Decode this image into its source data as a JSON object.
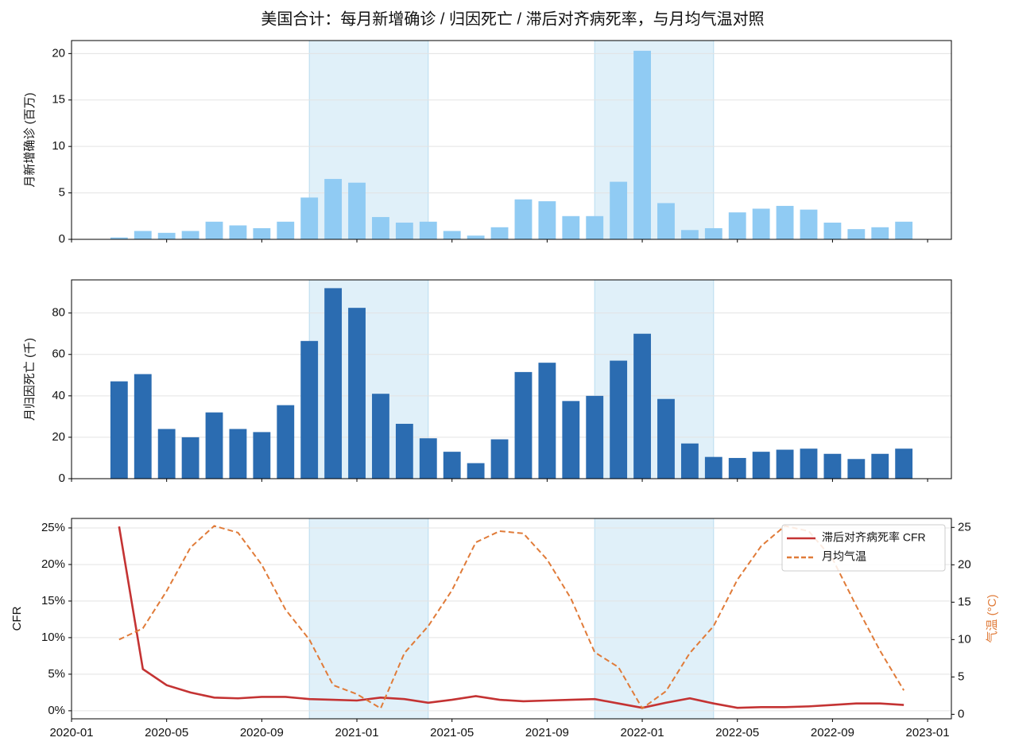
{
  "title": "美国合计：每月新增确诊 / 归因死亡 / 滞后对齐病死率，与月均气温对照",
  "shaded_spans": [
    [
      "2020-11",
      "2021-04"
    ],
    [
      "2021-11",
      "2022-04"
    ]
  ],
  "chart_data": [
    {
      "type": "bar",
      "ylabel": "月新增确诊 (百万)",
      "color": "#90cbf3",
      "x": [
        "2020-03",
        "2020-04",
        "2020-05",
        "2020-06",
        "2020-07",
        "2020-08",
        "2020-09",
        "2020-10",
        "2020-11",
        "2020-12",
        "2021-01",
        "2021-02",
        "2021-03",
        "2021-04",
        "2021-05",
        "2021-06",
        "2021-07",
        "2021-08",
        "2021-09",
        "2021-10",
        "2021-11",
        "2021-12",
        "2022-01",
        "2022-02",
        "2022-03",
        "2022-04",
        "2022-05",
        "2022-06",
        "2022-07",
        "2022-08",
        "2022-09",
        "2022-10",
        "2022-11",
        "2022-12"
      ],
      "values": [
        0.2,
        0.9,
        0.7,
        0.9,
        1.9,
        1.5,
        1.2,
        1.9,
        4.5,
        6.5,
        6.1,
        2.4,
        1.8,
        1.9,
        0.9,
        0.4,
        1.3,
        4.3,
        4.1,
        2.5,
        2.5,
        6.2,
        20.3,
        3.9,
        1.0,
        1.2,
        2.9,
        3.3,
        3.6,
        3.2,
        1.8,
        1.1,
        1.3,
        1.9
      ],
      "xlim": [
        "2020-01",
        "2023-02"
      ],
      "xticks": [
        "2020-01",
        "2020-05",
        "2020-09",
        "2021-01",
        "2021-05",
        "2021-09",
        "2022-01",
        "2022-05",
        "2022-09",
        "2023-01"
      ],
      "ylim": [
        0,
        21.4
      ],
      "yticks": [
        0,
        5,
        10,
        15,
        20
      ],
      "grid": true
    },
    {
      "type": "bar",
      "ylabel": "月归因死亡 (千)",
      "color": "#2b6cb1",
      "x": [
        "2020-03",
        "2020-04",
        "2020-05",
        "2020-06",
        "2020-07",
        "2020-08",
        "2020-09",
        "2020-10",
        "2020-11",
        "2020-12",
        "2021-01",
        "2021-02",
        "2021-03",
        "2021-04",
        "2021-05",
        "2021-06",
        "2021-07",
        "2021-08",
        "2021-09",
        "2021-10",
        "2021-11",
        "2021-12",
        "2022-01",
        "2022-02",
        "2022-03",
        "2022-04",
        "2022-05",
        "2022-06",
        "2022-07",
        "2022-08",
        "2022-09",
        "2022-10",
        "2022-11",
        "2022-12"
      ],
      "values": [
        47,
        50.5,
        24,
        20,
        32,
        24,
        22.5,
        35.5,
        66.5,
        92,
        82.5,
        41,
        26.5,
        19.5,
        13,
        7.5,
        19,
        51.5,
        56,
        37.5,
        40,
        57,
        70,
        38.5,
        17,
        10.5,
        10,
        13,
        14,
        14.5,
        12,
        9.5,
        12,
        14.5
      ],
      "xlim": [
        "2020-01",
        "2023-02"
      ],
      "xticks": [
        "2020-01",
        "2020-05",
        "2020-09",
        "2021-01",
        "2021-05",
        "2021-09",
        "2022-01",
        "2022-05",
        "2022-09",
        "2023-01"
      ],
      "ylim": [
        0,
        96
      ],
      "yticks": [
        0,
        20,
        40,
        60,
        80
      ],
      "grid": true
    },
    {
      "type": "line",
      "ylabel": "CFR",
      "y2label": "气温 (°C)",
      "y2label_color": "#e07b39",
      "legend": "upper right",
      "x": [
        "2020-03",
        "2020-04",
        "2020-05",
        "2020-06",
        "2020-07",
        "2020-08",
        "2020-09",
        "2020-10",
        "2020-11",
        "2020-12",
        "2021-01",
        "2021-02",
        "2021-03",
        "2021-04",
        "2021-05",
        "2021-06",
        "2021-07",
        "2021-08",
        "2021-09",
        "2021-10",
        "2021-11",
        "2021-12",
        "2022-01",
        "2022-02",
        "2022-03",
        "2022-04",
        "2022-05",
        "2022-06",
        "2022-07",
        "2022-08",
        "2022-09",
        "2022-10",
        "2022-11",
        "2022-12"
      ],
      "series": [
        {
          "name": "滞后对齐病死率 CFR",
          "color": "#c43333",
          "linestyle": "solid",
          "values": [
            25.2,
            5.7,
            3.5,
            2.5,
            1.8,
            1.7,
            1.9,
            1.9,
            1.6,
            1.5,
            1.4,
            1.8,
            1.6,
            1.1,
            1.5,
            2.0,
            1.5,
            1.3,
            1.4,
            1.5,
            1.6,
            1.0,
            0.4,
            1.1,
            1.7,
            1.0,
            0.4,
            0.5,
            0.5,
            0.6,
            0.8,
            1.0,
            1.0,
            0.8
          ]
        },
        {
          "name": "月均气温",
          "color": "#e07b39",
          "linestyle": "dashed",
          "axis": "y2",
          "values": [
            10,
            11.5,
            16.5,
            22.3,
            25.2,
            24.3,
            20,
            14,
            10,
            3.9,
            2.7,
            0.8,
            8.2,
            11.8,
            16.6,
            23,
            24.5,
            24.2,
            20.7,
            15.5,
            8.3,
            6.3,
            0.8,
            3.1,
            8.2,
            11.8,
            18,
            22.5,
            25.2,
            24.5,
            20.8,
            14.5,
            8.5,
            3.2
          ]
        }
      ],
      "xlim": [
        "2020-01",
        "2023-02"
      ],
      "xticks": [
        "2020-01",
        "2020-05",
        "2020-09",
        "2021-01",
        "2021-05",
        "2021-09",
        "2022-01",
        "2022-05",
        "2022-09",
        "2023-01"
      ],
      "ylim": [
        -1.1,
        26.3
      ],
      "yticks": [
        {
          "value": 0,
          "label": "0%"
        },
        {
          "value": 5,
          "label": "5%"
        },
        {
          "value": 10,
          "label": "10%"
        },
        {
          "value": 15,
          "label": "15%"
        },
        {
          "value": 20,
          "label": "20%"
        },
        {
          "value": 25,
          "label": "25%"
        }
      ],
      "y2lim": [
        -0.6,
        26.2
      ],
      "y2ticks": [
        0,
        5,
        10,
        15,
        20,
        25
      ],
      "grid": true
    }
  ]
}
